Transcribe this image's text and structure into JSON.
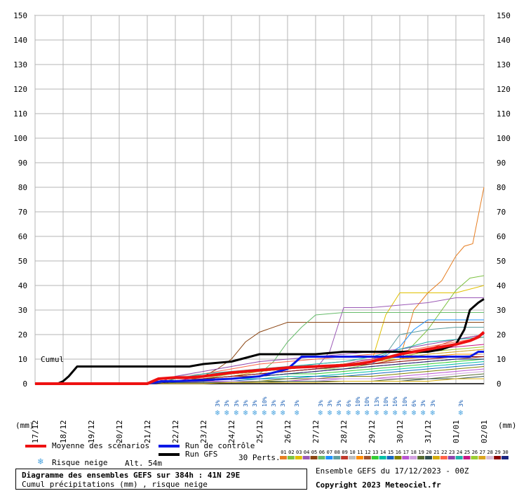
{
  "chart_data": {
    "type": "line",
    "title": "Diagramme des ensembles GEFS sur 384h : 41N 29E",
    "subtitle": "Cumul précipitations (mm) , risque neige",
    "ylabel": "(mm)",
    "ylim": [
      0,
      150
    ],
    "yticks": [
      "0",
      "10",
      "20",
      "30",
      "40",
      "50",
      "60",
      "70",
      "80",
      "90",
      "100",
      "110",
      "120",
      "130",
      "140",
      "150"
    ],
    "x_tick_labels": [
      "17/12",
      "18/12",
      "19/12",
      "20/12",
      "21/12",
      "22/12",
      "23/12",
      "24/12",
      "25/12",
      "26/12",
      "27/12",
      "28/12",
      "29/12",
      "30/12",
      "31/12",
      "01/01",
      "02/01"
    ],
    "x_range_days": [
      0,
      16
    ],
    "grid": true,
    "cumul_label": "Cumul",
    "altitude": "Alt. 54m",
    "members_label": "30 Perts.",
    "member_numbers": [
      "01",
      "02",
      "03",
      "04",
      "05",
      "06",
      "07",
      "08",
      "09",
      "10",
      "11",
      "12",
      "13",
      "14",
      "15",
      "16",
      "17",
      "18",
      "19",
      "20",
      "21",
      "22",
      "23",
      "24",
      "25",
      "26",
      "27",
      "28",
      "29",
      "30"
    ],
    "member_colors": [
      "#e67e22",
      "#7dc242",
      "#e0c000",
      "#9b59b6",
      "#8b4513",
      "#66bb6a",
      "#1e90ff",
      "#5f9ea0",
      "#c0392b",
      "#bdbdbd",
      "#ff8c00",
      "#a0522d",
      "#32cd32",
      "#00bfa5",
      "#1565c0",
      "#808000",
      "#ba55d3",
      "#d2a0e0",
      "#556b2f",
      "#2f4f4f",
      "#d4ac0d",
      "#ff6347",
      "#8e44ad",
      "#20b2aa",
      "#c71585",
      "#9acd32",
      "#daa520",
      "#d8bfd8",
      "#8b0000",
      "#1a237e"
    ],
    "series": [
      {
        "name": "Moyenne des scénarios",
        "color": "#ee1111",
        "width": 4,
        "x": [
          0,
          4,
          4.4,
          5,
          5.5,
          6,
          7,
          8,
          9,
          10,
          11,
          11.5,
          12,
          12.5,
          13,
          13.5,
          14,
          14.5,
          15,
          15.5,
          15.8,
          16
        ],
        "y": [
          0,
          0,
          2,
          2.5,
          2.5,
          3,
          4.5,
          5.5,
          6.5,
          7,
          7.5,
          8,
          9,
          10.5,
          12,
          13,
          14,
          15,
          16,
          17.5,
          19,
          21
        ]
      },
      {
        "name": "Run de contrôle",
        "color": "#0a18e6",
        "width": 3,
        "x": [
          0,
          4,
          4.5,
          5,
          6,
          7,
          8,
          9,
          9.5,
          10,
          11,
          12,
          12.5,
          13,
          14,
          14.5,
          15,
          15.5,
          15.8,
          16
        ],
        "y": [
          0,
          0,
          1,
          1,
          1.5,
          2,
          3,
          6,
          11,
          11,
          11,
          11,
          11,
          11,
          11,
          11,
          11,
          11,
          13,
          13
        ]
      },
      {
        "name": "Run GFS",
        "color": "#000000",
        "width": 3,
        "x": [
          0,
          0.8,
          1,
          1.2,
          1.5,
          5,
          5.5,
          6,
          7,
          7.5,
          8,
          8.5,
          9,
          10,
          11,
          12,
          13,
          14,
          14.5,
          15,
          15.3,
          15.5,
          15.8,
          16
        ],
        "y": [
          0,
          0,
          1,
          3,
          7,
          7,
          7,
          8,
          9,
          10.5,
          12,
          12,
          12,
          12,
          13,
          13,
          13,
          13,
          14,
          16,
          22,
          30,
          33,
          34.5
        ]
      }
    ],
    "members": [
      {
        "x": [
          0,
          4.3,
          5,
          6,
          7,
          8,
          9,
          10,
          11,
          12,
          13,
          13.5,
          14,
          14.5,
          15,
          15.3,
          15.6,
          16
        ],
        "y": [
          0,
          0,
          2,
          3,
          4,
          5,
          6,
          7,
          8,
          9,
          10,
          30,
          37,
          42,
          52,
          56,
          57,
          80
        ]
      },
      {
        "x": [
          0,
          4.3,
          5,
          6,
          7,
          8,
          9,
          10,
          11,
          12,
          13,
          14,
          14.5,
          15,
          15.5,
          16
        ],
        "y": [
          0,
          0,
          1,
          2,
          3,
          4,
          5,
          6,
          6,
          8,
          10,
          22,
          30,
          38,
          43,
          44
        ]
      },
      {
        "x": [
          0,
          4.3,
          5,
          6,
          7,
          8,
          9,
          10,
          11,
          12,
          12.5,
          13,
          14,
          15,
          16
        ],
        "y": [
          0,
          0,
          2,
          3,
          4,
          5,
          6,
          7,
          8,
          9,
          28,
          37,
          37,
          37,
          40
        ]
      },
      {
        "x": [
          0,
          4.5,
          5,
          6,
          7,
          8,
          9,
          10,
          10.5,
          11,
          12,
          13,
          14,
          15,
          16
        ],
        "y": [
          0,
          0,
          1,
          2,
          3,
          4,
          5,
          6,
          13,
          31,
          31,
          32,
          33,
          35,
          35
        ]
      },
      {
        "x": [
          0,
          4.3,
          5,
          6,
          6.5,
          7,
          7.5,
          8,
          9,
          10,
          11,
          12,
          13,
          14,
          15,
          16
        ],
        "y": [
          0,
          0,
          2,
          3,
          6,
          10,
          17,
          21,
          25,
          25,
          25,
          25,
          25,
          25,
          25,
          25
        ]
      },
      {
        "x": [
          0,
          4.3,
          5,
          6,
          7,
          8,
          8.5,
          9,
          9.5,
          10,
          11,
          12,
          13,
          14,
          15,
          16
        ],
        "y": [
          0,
          0,
          1,
          2,
          3,
          4,
          9,
          17,
          23,
          28,
          29,
          29,
          29,
          29,
          29,
          29
        ]
      },
      {
        "x": [
          0,
          4.5,
          5,
          6,
          7,
          8,
          9,
          10,
          11,
          12,
          13,
          13.5,
          14,
          15,
          16
        ],
        "y": [
          0,
          0,
          1,
          2,
          3,
          4,
          5,
          6,
          7,
          8,
          15,
          22,
          26,
          26,
          26
        ]
      },
      {
        "x": [
          0,
          4.3,
          5,
          6,
          7,
          8,
          9,
          10,
          11,
          12,
          12.5,
          13,
          14,
          15,
          16
        ],
        "y": [
          0,
          0,
          2,
          3,
          4,
          5,
          6,
          8,
          9,
          10,
          12,
          20,
          22,
          23,
          23
        ]
      },
      {
        "x": [
          0,
          4.3,
          5,
          6,
          7,
          8,
          9,
          10,
          11,
          12,
          13,
          14,
          15,
          16
        ],
        "y": [
          0,
          0,
          1,
          2,
          3,
          4,
          5,
          6,
          7,
          8,
          10,
          14,
          18,
          20
        ]
      },
      {
        "x": [
          0,
          4.3,
          5,
          6,
          7,
          8,
          9,
          10,
          11,
          12,
          13,
          14,
          15,
          16
        ],
        "y": [
          0,
          0,
          3,
          4,
          5,
          6,
          7,
          8,
          9,
          10,
          11,
          12,
          13,
          14
        ]
      },
      {
        "x": [
          0,
          4.3,
          5,
          6,
          7,
          8,
          9,
          10,
          11,
          12,
          13,
          14,
          15,
          16
        ],
        "y": [
          0,
          0,
          2,
          3,
          4,
          5,
          6,
          7,
          8,
          9,
          10,
          11,
          12,
          12
        ]
      },
      {
        "x": [
          0,
          4.3,
          5,
          6,
          7,
          8,
          9,
          10,
          11,
          12,
          13,
          14,
          15,
          16
        ],
        "y": [
          0,
          0,
          2,
          2,
          3,
          3,
          4,
          5,
          6,
          7,
          8,
          9,
          10,
          11
        ]
      },
      {
        "x": [
          0,
          4.3,
          5,
          6,
          7,
          8,
          9,
          10,
          11,
          12,
          13,
          14,
          15,
          16
        ],
        "y": [
          0,
          0,
          1,
          2,
          2,
          3,
          4,
          4,
          5,
          6,
          7,
          8,
          9,
          10
        ]
      },
      {
        "x": [
          0,
          4.3,
          5,
          6,
          7,
          8,
          9,
          10,
          11,
          12,
          13,
          14,
          15,
          16
        ],
        "y": [
          0,
          0,
          1,
          1,
          2,
          2,
          3,
          3,
          4,
          5,
          6,
          7,
          8,
          9
        ]
      },
      {
        "x": [
          0,
          4.3,
          5,
          6,
          7,
          8,
          9,
          10,
          11,
          12,
          13,
          14,
          15,
          16
        ],
        "y": [
          0,
          0,
          1,
          1,
          1,
          2,
          2,
          3,
          3,
          4,
          5,
          6,
          7,
          8
        ]
      },
      {
        "x": [
          0,
          4.3,
          5,
          6,
          7,
          8,
          9,
          10,
          11,
          12,
          13,
          14,
          15,
          16
        ],
        "y": [
          0,
          0,
          1,
          1,
          1,
          1,
          2,
          2,
          3,
          3,
          4,
          5,
          6,
          7
        ]
      },
      {
        "x": [
          0,
          4.3,
          5,
          6,
          7,
          8,
          9,
          10,
          11,
          12,
          13,
          14,
          15,
          16
        ],
        "y": [
          0,
          0,
          0.5,
          1,
          1,
          1,
          1,
          2,
          2,
          2,
          3,
          4,
          5,
          6
        ]
      },
      {
        "x": [
          0,
          4.3,
          5,
          6,
          7,
          8,
          9,
          10,
          11,
          12,
          13,
          14,
          15,
          16
        ],
        "y": [
          0,
          0,
          0.5,
          0.5,
          1,
          1,
          1,
          1,
          2,
          2,
          2,
          3,
          4,
          5
        ]
      },
      {
        "x": [
          0,
          4.3,
          5,
          6,
          7,
          8,
          9,
          10,
          11,
          12,
          13,
          14,
          15,
          16
        ],
        "y": [
          0,
          0,
          0.5,
          0.5,
          0.5,
          1,
          1,
          1,
          1,
          1,
          2,
          2,
          3,
          4
        ]
      },
      {
        "x": [
          0,
          4.3,
          5,
          6,
          7,
          8,
          9,
          10,
          11,
          12,
          13,
          14,
          15,
          16
        ],
        "y": [
          0,
          0,
          0.5,
          0.5,
          0.5,
          0.5,
          1,
          1,
          1,
          1,
          1,
          2,
          2,
          3
        ]
      },
      {
        "x": [
          0,
          4.3,
          5,
          6,
          7,
          8,
          9,
          10,
          11,
          12,
          13,
          14,
          15,
          16
        ],
        "y": [
          0,
          0,
          0,
          0,
          0.5,
          0.5,
          0.5,
          0.5,
          1,
          1,
          1,
          1,
          2,
          2
        ]
      },
      {
        "x": [
          0,
          4.3,
          5,
          6,
          7,
          8,
          9,
          10,
          11,
          12,
          13,
          14,
          15,
          16
        ],
        "y": [
          0,
          0,
          2,
          4,
          6,
          8,
          9,
          10,
          11,
          12,
          13,
          15,
          17,
          19
        ]
      },
      {
        "x": [
          0,
          4.3,
          5,
          6,
          7,
          8,
          9,
          10,
          11,
          12,
          13,
          14,
          15,
          16
        ],
        "y": [
          0,
          0,
          3,
          5,
          7,
          9,
          10,
          11,
          12,
          13,
          14,
          16,
          18,
          20
        ]
      },
      {
        "x": [
          0,
          4.3,
          5,
          6,
          7,
          8,
          9,
          10,
          11,
          12,
          13,
          14,
          15,
          16
        ],
        "y": [
          0,
          0,
          2,
          4,
          5,
          6,
          7,
          8,
          9,
          11,
          14,
          17,
          18,
          19
        ]
      },
      {
        "x": [
          0,
          4.3,
          5,
          6,
          7,
          8,
          9,
          10,
          11,
          12,
          13,
          14,
          15,
          16
        ],
        "y": [
          0,
          0,
          1,
          3,
          4,
          5,
          6,
          7,
          8,
          10,
          12,
          14,
          15,
          16
        ]
      },
      {
        "x": [
          0,
          4.3,
          5,
          6,
          7,
          8,
          9,
          10,
          11,
          12,
          13,
          14,
          15,
          16
        ],
        "y": [
          0,
          0,
          1,
          2,
          4,
          5,
          6,
          7,
          8,
          9,
          11,
          13,
          14,
          15
        ]
      },
      {
        "x": [
          0,
          4.3,
          5,
          6,
          7,
          8,
          9,
          10,
          11,
          12,
          13,
          14,
          15,
          16
        ],
        "y": [
          0,
          0,
          1,
          2,
          3,
          5,
          6,
          7,
          8,
          9,
          10,
          12,
          13,
          14
        ]
      },
      {
        "x": [
          0,
          4.3,
          5,
          6,
          7,
          8,
          9,
          10,
          11,
          12,
          13,
          14,
          15,
          16
        ],
        "y": [
          0,
          0,
          1,
          2,
          3,
          4,
          5,
          6,
          7,
          8,
          9,
          10,
          11,
          12
        ]
      },
      {
        "x": [
          0,
          4.3,
          5,
          6,
          7,
          8,
          9,
          10,
          11,
          12,
          13,
          14,
          15,
          16
        ],
        "y": [
          0,
          0,
          1,
          2,
          3,
          4,
          5,
          6,
          7,
          8,
          9,
          10,
          11,
          11
        ]
      },
      {
        "x": [
          0,
          4.3,
          5,
          6,
          7,
          8,
          9,
          10,
          11,
          12,
          13,
          14,
          15,
          16
        ],
        "y": [
          0,
          0,
          1,
          1,
          2,
          3,
          4,
          5,
          6,
          7,
          8,
          9,
          10,
          10
        ]
      }
    ],
    "snow_risk": [
      {
        "day": 6.5,
        "pct": "3%"
      },
      {
        "day": 6.83,
        "pct": "3%"
      },
      {
        "day": 7.17,
        "pct": "3%"
      },
      {
        "day": 7.5,
        "pct": "3%"
      },
      {
        "day": 7.83,
        "pct": "3%"
      },
      {
        "day": 8.17,
        "pct": "10%"
      },
      {
        "day": 8.5,
        "pct": "3%"
      },
      {
        "day": 8.83,
        "pct": "3%"
      },
      {
        "day": 9.33,
        "pct": "3%"
      },
      {
        "day": 10.17,
        "pct": "3%"
      },
      {
        "day": 10.5,
        "pct": "3%"
      },
      {
        "day": 10.83,
        "pct": "3%"
      },
      {
        "day": 11.17,
        "pct": "6%"
      },
      {
        "day": 11.5,
        "pct": "10%"
      },
      {
        "day": 11.83,
        "pct": "10%"
      },
      {
        "day": 12.17,
        "pct": "13%"
      },
      {
        "day": 12.5,
        "pct": "10%"
      },
      {
        "day": 12.83,
        "pct": "16%"
      },
      {
        "day": 13.17,
        "pct": "10%"
      },
      {
        "day": 13.5,
        "pct": "6%"
      },
      {
        "day": 13.83,
        "pct": "3%"
      },
      {
        "day": 14.17,
        "pct": "3%"
      },
      {
        "day": 15.17,
        "pct": "3%"
      }
    ]
  },
  "legend": {
    "mean_label": "Moyenne des scénarios",
    "control_label": "Run de contrôle",
    "gfs_label": "Run GFS",
    "snow_label": "Risque neige"
  },
  "info": {
    "ensemble": "Ensemble GEFS du 17/12/2023 - 00Z",
    "copyright": "Copyright 2023 Meteociel.fr"
  }
}
